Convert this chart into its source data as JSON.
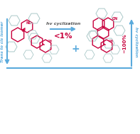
{
  "bg_color": "#ffffff",
  "top_arrow_text": "hv cyclization",
  "top_percent_text": "<1%",
  "bottom_left_text": "Trans to cis isomer",
  "bottom_right_text": "hv cyclization",
  "bottom_percent_text": "~100%",
  "plus_text": "+",
  "arrow_color": "#5aaadc",
  "red_color": "#c8003c",
  "gray_color": "#aac8c8",
  "arrow_text_color": "#555555"
}
